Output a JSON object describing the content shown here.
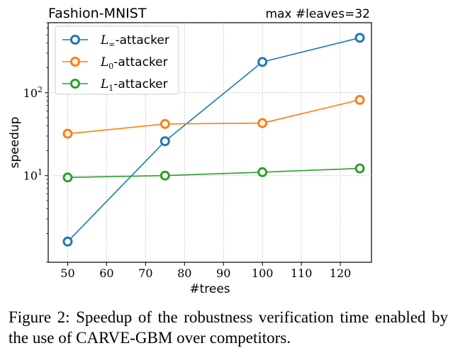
{
  "chart_data": {
    "type": "line",
    "title": "Fashion-MNIST",
    "annotation": "max #leaves=32",
    "xlabel": "#trees",
    "ylabel": "speedup",
    "x_scale": "linear",
    "y_scale": "log",
    "xlim": [
      45,
      128
    ],
    "ylim": [
      0.9,
      700
    ],
    "x_ticks": [
      50,
      60,
      70,
      80,
      90,
      100,
      110,
      120
    ],
    "y_ticks": [
      {
        "value": 10,
        "base": "10",
        "exp": "1"
      },
      {
        "value": 100,
        "base": "10",
        "exp": "2"
      }
    ],
    "grid": true,
    "legend_position": "top-left",
    "x": [
      50,
      75,
      100,
      125
    ],
    "series": [
      {
        "name_main": "L",
        "name_sub": "∞",
        "name_suffix": "-attacker",
        "color": "#1f77b4",
        "values": [
          1.6,
          26,
          235,
          460
        ]
      },
      {
        "name_main": "L",
        "name_sub": "0",
        "name_suffix": "-attacker",
        "color": "#ff7f0e",
        "values": [
          32,
          42,
          43,
          82
        ]
      },
      {
        "name_main": "L",
        "name_sub": "1",
        "name_suffix": "-attacker",
        "color": "#2ca02c",
        "values": [
          9.5,
          10,
          11,
          12.2
        ]
      }
    ]
  },
  "caption": "Figure 2: Speedup of the robustness verification time enabled by the use of CARVE-GBM over competitors."
}
